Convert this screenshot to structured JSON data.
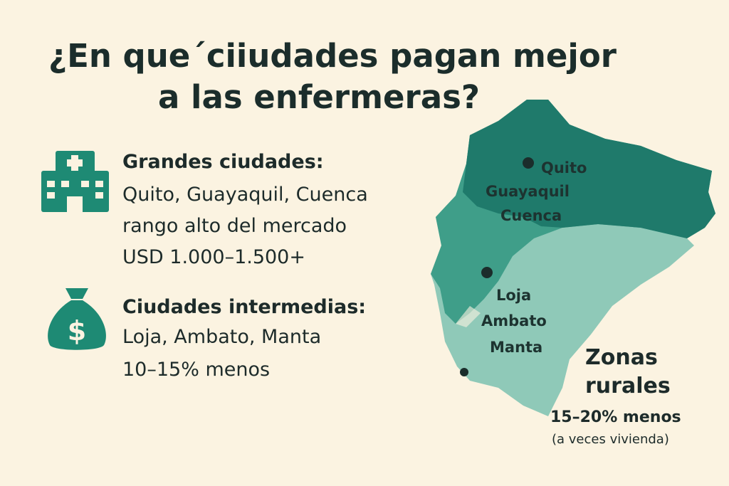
{
  "header": {
    "title_lines": [
      "¿En que´ciiudades pagan mejor",
      "a las enfermeras?"
    ]
  },
  "sections": [
    {
      "heading": "Grandes ciudades:",
      "lines": [
        "Quito, Guayaquil, Cuenca",
        "rango alto del mercado",
        "USD 1.000–1.500+"
      ]
    },
    {
      "heading": "Ciudades intermedias:",
      "lines": [
        "Loja, Ambato, Manta",
        "10–15% menos"
      ]
    }
  ],
  "map": {
    "labels": [
      "Quito",
      "Guayaquil",
      "Cuenca",
      "Loja",
      "Ambato",
      "Manta"
    ],
    "rural": {
      "title_lines": [
        "Zonas",
        "rurales"
      ],
      "detail": "15–20% menos",
      "note": "(a veces vivienda)"
    }
  }
}
